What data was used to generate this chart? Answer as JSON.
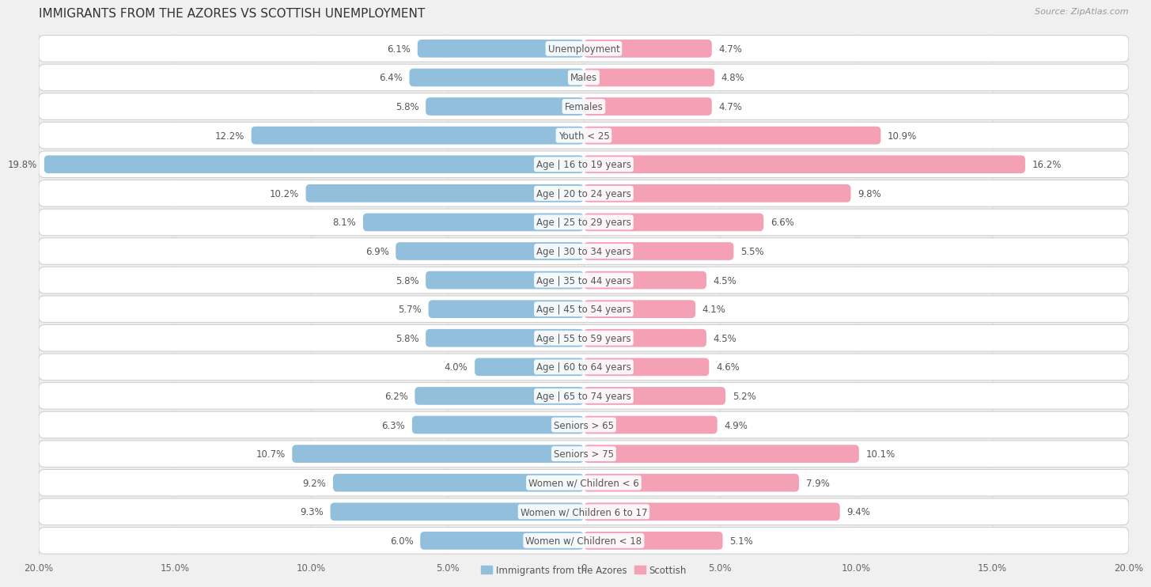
{
  "title": "IMMIGRANTS FROM THE AZORES VS SCOTTISH UNEMPLOYMENT",
  "source": "Source: ZipAtlas.com",
  "categories": [
    "Unemployment",
    "Males",
    "Females",
    "Youth < 25",
    "Age | 16 to 19 years",
    "Age | 20 to 24 years",
    "Age | 25 to 29 years",
    "Age | 30 to 34 years",
    "Age | 35 to 44 years",
    "Age | 45 to 54 years",
    "Age | 55 to 59 years",
    "Age | 60 to 64 years",
    "Age | 65 to 74 years",
    "Seniors > 65",
    "Seniors > 75",
    "Women w/ Children < 6",
    "Women w/ Children 6 to 17",
    "Women w/ Children < 18"
  ],
  "azores_values": [
    6.1,
    6.4,
    5.8,
    12.2,
    19.8,
    10.2,
    8.1,
    6.9,
    5.8,
    5.7,
    5.8,
    4.0,
    6.2,
    6.3,
    10.7,
    9.2,
    9.3,
    6.0
  ],
  "scottish_values": [
    4.7,
    4.8,
    4.7,
    10.9,
    16.2,
    9.8,
    6.6,
    5.5,
    4.5,
    4.1,
    4.5,
    4.6,
    5.2,
    4.9,
    10.1,
    7.9,
    9.4,
    5.1
  ],
  "azores_color": "#92c0dc",
  "scottish_color": "#f4a0b5",
  "azores_label": "Immigrants from the Azores",
  "scottish_label": "Scottish",
  "xlim": 20.0,
  "background_color": "#f0f0f0",
  "row_bg_color": "#ffffff",
  "bar_height": 0.62,
  "title_fontsize": 11,
  "label_fontsize": 8.5,
  "tick_fontsize": 8.5,
  "source_fontsize": 8,
  "value_fontsize": 8.5
}
